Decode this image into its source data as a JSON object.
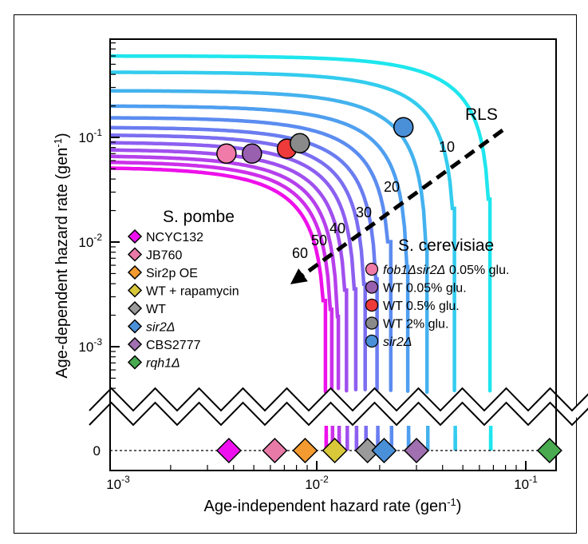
{
  "chart_data": {
    "type": "line",
    "title": "",
    "xlabel": "Age-independent hazard rate (gen",
    "xlabel_sup": "-1",
    "xlabel_end": ")",
    "ylabel": "Age-dependent hazard rate (gen",
    "ylabel_sup": "-1",
    "ylabel_end": ")",
    "x_scale": "log",
    "y_scale": "log (with broken axis showing 0)",
    "xlim": [
      0.001,
      0.16
    ],
    "ylim": [
      0.0003,
      0.9
    ],
    "x_ticks": [
      {
        "base": "10",
        "exp": "-3"
      },
      {
        "base": "10",
        "exp": "-2"
      },
      {
        "base": "10",
        "exp": "-1"
      }
    ],
    "y_ticks": [
      {
        "base": "10",
        "exp": "-3"
      },
      {
        "base": "10",
        "exp": "-2"
      },
      {
        "base": "10",
        "exp": "-1"
      }
    ],
    "y_zero_label": "0",
    "iso_rls_curves": {
      "description_label": "RLS",
      "labeled_values": [
        "10",
        "20",
        "30",
        "40",
        "50",
        "60"
      ],
      "series": [
        {
          "rls": 10,
          "asymptote_x": 0.068,
          "asymptote_y": 0.6,
          "color": "#1ee6ee"
        },
        {
          "rls": 14,
          "asymptote_x": 0.046,
          "asymptote_y": 0.42,
          "color": "#33ccee"
        },
        {
          "rls": 20,
          "asymptote_x": 0.034,
          "asymptote_y": 0.28,
          "color": "#44b2ee"
        },
        {
          "rls": 24,
          "asymptote_x": 0.0275,
          "asymptote_y": 0.2,
          "color": "#4f9ff0"
        },
        {
          "rls": 28,
          "asymptote_x": 0.0228,
          "asymptote_y": 0.155,
          "color": "#5b8cf0"
        },
        {
          "rls": 32,
          "asymptote_x": 0.0196,
          "asymptote_y": 0.125,
          "color": "#6a7df0"
        },
        {
          "rls": 36,
          "asymptote_x": 0.0172,
          "asymptote_y": 0.106,
          "color": "#7b6ef0"
        },
        {
          "rls": 40,
          "asymptote_x": 0.0155,
          "asymptote_y": 0.09,
          "color": "#8d5ff0"
        },
        {
          "rls": 45,
          "asymptote_x": 0.014,
          "asymptote_y": 0.077,
          "color": "#a050ee"
        },
        {
          "rls": 50,
          "asymptote_x": 0.0128,
          "asymptote_y": 0.067,
          "color": "#b540ec"
        },
        {
          "rls": 55,
          "asymptote_x": 0.0119,
          "asymptote_y": 0.059,
          "color": "#cc30ea"
        },
        {
          "rls": 60,
          "asymptote_x": 0.0111,
          "asymptote_y": 0.052,
          "color": "#ee10ea"
        }
      ]
    },
    "legend_pombe": {
      "title": "S. pombe",
      "items": [
        {
          "name": "NCYC132",
          "italic": false,
          "color": "#ee10ee",
          "x": 0.0038,
          "y": 0
        },
        {
          "name": "JB760",
          "italic": false,
          "color": "#e87aa8",
          "x": 0.0063,
          "y": 0
        },
        {
          "name": "Sir2p OE",
          "italic": false,
          "color": "#f39a30",
          "x": 0.0088,
          "y": 0
        },
        {
          "name": "WT + rapamycin",
          "italic": false,
          "color": "#d8c83a",
          "x": 0.0122,
          "y": 0
        },
        {
          "name": "WT",
          "italic": false,
          "color": "#9a9a9a",
          "x": 0.0175,
          "y": 0
        },
        {
          "name": "sir2Δ",
          "italic": true,
          "color": "#4a90d8",
          "x": 0.021,
          "y": 0
        },
        {
          "name": "CBS2777",
          "italic": false,
          "color": "#a070b0",
          "x": 0.03,
          "y": 0
        },
        {
          "name": "rqh1Δ",
          "italic": true,
          "color": "#4aaa50",
          "x": 0.13,
          "y": 0
        }
      ]
    },
    "legend_cerevisiae": {
      "title": "S. cerevisiae",
      "items": [
        {
          "name_italic": "fob1Δsir2Δ",
          "name_rest": " 0.05% glu.",
          "color": "#f07aa8",
          "x": 0.0037,
          "y": 0.07
        },
        {
          "name_italic": "",
          "name_rest": "WT 0.05% glu.",
          "color": "#9a60b0",
          "x": 0.0049,
          "y": 0.07
        },
        {
          "name_italic": "",
          "name_rest": "WT 0.5% glu.",
          "color": "#ee3a3a",
          "x": 0.0072,
          "y": 0.078
        },
        {
          "name_italic": "",
          "name_rest": "WT 2% glu.",
          "color": "#8a8a8a",
          "x": 0.0083,
          "y": 0.088
        },
        {
          "name_italic": "sir2Δ",
          "name_rest": "",
          "color": "#4a90d8",
          "x": 0.026,
          "y": 0.125
        }
      ]
    }
  }
}
